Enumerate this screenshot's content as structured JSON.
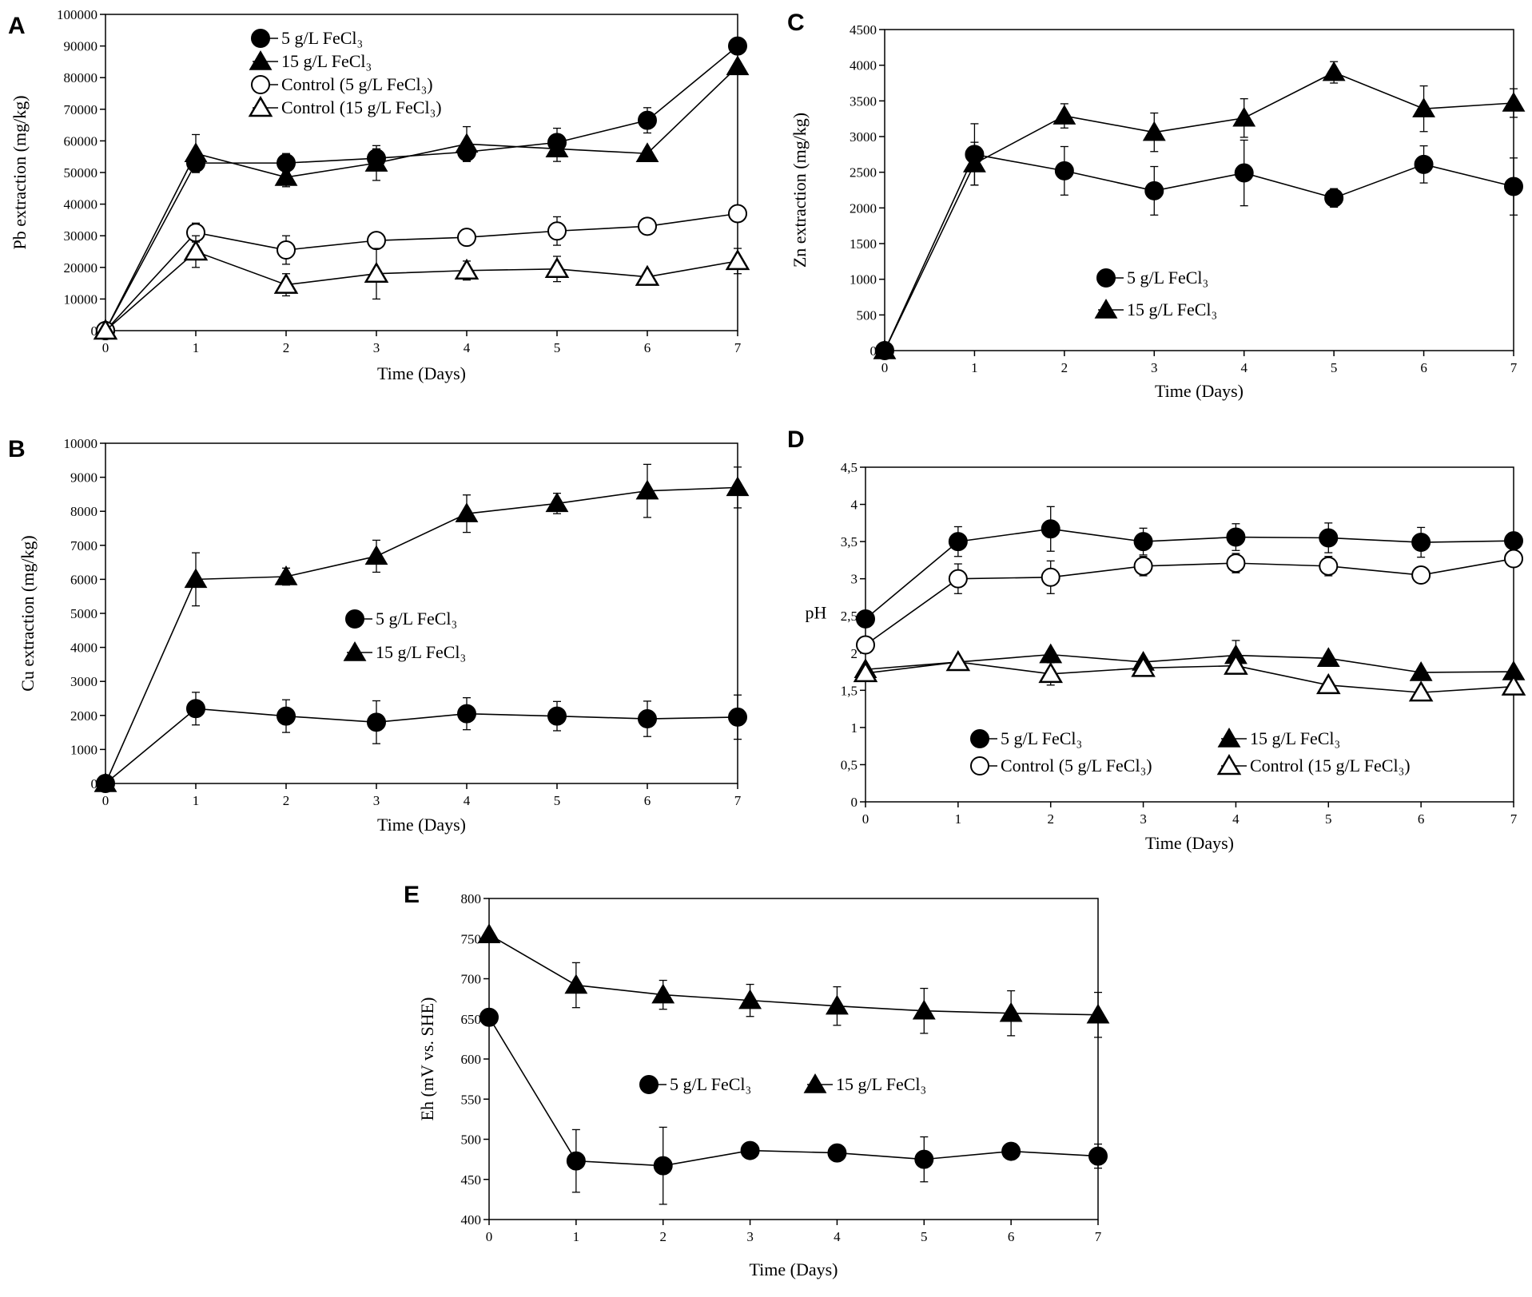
{
  "figure": {
    "subscript_note": "FeCl₃ shown as in original"
  },
  "chart_data": [
    {
      "panel": "A",
      "type": "line",
      "xlabel": "Time (Days)",
      "ylabel": "Pb extraction (mg/kg)",
      "xlim": [
        0,
        7
      ],
      "ylim": [
        0,
        100000
      ],
      "yticks": [
        0,
        10000,
        20000,
        30000,
        40000,
        50000,
        60000,
        70000,
        80000,
        90000,
        100000
      ],
      "ytick_labels": [
        "0",
        "10000",
        "20000",
        "30000",
        "40000",
        "50000",
        "60000",
        "70000",
        "80000",
        "90000",
        "100000"
      ],
      "xticks": [
        0,
        1,
        2,
        3,
        4,
        5,
        6,
        7
      ],
      "xtick_labels": [
        "0",
        "1",
        "2",
        "3",
        "4",
        "5",
        "6",
        "7"
      ],
      "legend": "top-left, stacked",
      "series": [
        {
          "name": "5 g/L FeCl₃",
          "marker": "circle-filled",
          "x": [
            0,
            1,
            2,
            3,
            4,
            5,
            6,
            7
          ],
          "values": [
            0,
            53000,
            53000,
            54500,
            56500,
            59500,
            66500,
            90000
          ],
          "errors": [
            0,
            3000,
            3000,
            3000,
            3000,
            4500,
            4000,
            0
          ]
        },
        {
          "name": "15 g/L FeCl₃",
          "marker": "triangle-filled",
          "x": [
            0,
            1,
            2,
            3,
            4,
            5,
            6,
            7
          ],
          "values": [
            0,
            56000,
            48500,
            53000,
            59000,
            57500,
            56000,
            83500
          ],
          "errors": [
            0,
            6000,
            3000,
            5500,
            5500,
            4000,
            0,
            0
          ]
        },
        {
          "name": "Control (5 g/L FeCl₃)",
          "marker": "circle-open",
          "x": [
            0,
            1,
            2,
            3,
            4,
            5,
            6,
            7
          ],
          "values": [
            0,
            31000,
            25500,
            28500,
            29500,
            31500,
            33000,
            37000
          ],
          "errors": [
            0,
            3000,
            4500,
            0,
            0,
            4500,
            0,
            0
          ]
        },
        {
          "name": "Control (15 g/L FeCl₃)",
          "marker": "triangle-open",
          "x": [
            0,
            1,
            2,
            3,
            4,
            5,
            6,
            7
          ],
          "values": [
            0,
            25000,
            14500,
            18000,
            19000,
            19500,
            17000,
            22000
          ],
          "errors": [
            0,
            5000,
            3500,
            8000,
            3000,
            4000,
            0,
            4000
          ]
        }
      ]
    },
    {
      "panel": "B",
      "type": "line",
      "xlabel": "Time (Days)",
      "ylabel": "Cu extraction (mg/kg)",
      "xlim": [
        0,
        7
      ],
      "ylim": [
        0,
        10000
      ],
      "yticks": [
        0,
        1000,
        2000,
        3000,
        4000,
        5000,
        6000,
        7000,
        8000,
        9000,
        10000
      ],
      "ytick_labels": [
        "0",
        "1000",
        "2000",
        "3000",
        "4000",
        "5000",
        "6000",
        "7000",
        "8000",
        "9000",
        "10000"
      ],
      "xticks": [
        0,
        1,
        2,
        3,
        4,
        5,
        6,
        7
      ],
      "xtick_labels": [
        "0",
        "1",
        "2",
        "3",
        "4",
        "5",
        "6",
        "7"
      ],
      "legend": "center, stacked",
      "series": [
        {
          "name": "5 g/L FeCl₃",
          "marker": "circle-filled",
          "x": [
            0,
            1,
            2,
            3,
            4,
            5,
            6,
            7
          ],
          "values": [
            0,
            2200,
            1980,
            1800,
            2050,
            1980,
            1900,
            1950
          ],
          "errors": [
            0,
            480,
            480,
            630,
            470,
            430,
            520,
            650
          ]
        },
        {
          "name": "15 g/L FeCl₃",
          "marker": "triangle-filled",
          "x": [
            0,
            1,
            2,
            3,
            4,
            5,
            6,
            7
          ],
          "values": [
            0,
            6000,
            6080,
            6680,
            7930,
            8230,
            8600,
            8700
          ],
          "errors": [
            0,
            780,
            250,
            470,
            550,
            300,
            780,
            600
          ]
        }
      ]
    },
    {
      "panel": "C",
      "type": "line",
      "xlabel": "Time (Days)",
      "ylabel": "Zn extraction (mg/kg)",
      "xlim": [
        0,
        7
      ],
      "ylim": [
        0,
        4500
      ],
      "yticks": [
        0,
        500,
        1000,
        1500,
        2000,
        2500,
        3000,
        3500,
        4000,
        4500
      ],
      "ytick_labels": [
        "0",
        "500",
        "1000",
        "1500",
        "2000",
        "2500",
        "3000",
        "3500",
        "4000",
        "4500"
      ],
      "xticks": [
        0,
        1,
        2,
        3,
        4,
        5,
        6,
        7
      ],
      "xtick_labels": [
        "0",
        "1",
        "2",
        "3",
        "4",
        "5",
        "6",
        "7"
      ],
      "legend": "center-left, stacked",
      "series": [
        {
          "name": "5 g/L FeCl₃",
          "marker": "circle-filled",
          "x": [
            0,
            1,
            2,
            3,
            4,
            5,
            6,
            7
          ],
          "values": [
            0,
            2750,
            2520,
            2240,
            2490,
            2140,
            2610,
            2300
          ],
          "errors": [
            0,
            430,
            340,
            340,
            460,
            130,
            260,
            400
          ]
        },
        {
          "name": "15 g/L FeCl₃",
          "marker": "triangle-filled",
          "x": [
            0,
            1,
            2,
            3,
            4,
            5,
            6,
            7
          ],
          "values": [
            0,
            2620,
            3290,
            3060,
            3260,
            3900,
            3390,
            3470
          ],
          "errors": [
            0,
            300,
            170,
            270,
            270,
            150,
            320,
            200
          ]
        }
      ]
    },
    {
      "panel": "D",
      "type": "line",
      "xlabel": "Time (Days)",
      "ylabel": "pH",
      "xlim": [
        0,
        7
      ],
      "ylim": [
        0,
        4.5
      ],
      "yticks": [
        0,
        0.5,
        1,
        1.5,
        2,
        2.5,
        3,
        3.5,
        4,
        4.5
      ],
      "ytick_labels": [
        "0",
        "0,5",
        "1",
        "1,5",
        "2",
        "2,5",
        "3",
        "3,5",
        "4",
        "4,5"
      ],
      "xticks": [
        0,
        1,
        2,
        3,
        4,
        5,
        6,
        7
      ],
      "xtick_labels": [
        "0",
        "1",
        "2",
        "3",
        "4",
        "5",
        "6",
        "7"
      ],
      "legend": "bottom, two columns",
      "series": [
        {
          "name": "5 g/L FeCl₃",
          "marker": "circle-filled",
          "x": [
            0,
            1,
            2,
            3,
            4,
            5,
            6,
            7
          ],
          "values": [
            2.46,
            3.5,
            3.67,
            3.5,
            3.56,
            3.55,
            3.49,
            3.51
          ],
          "errors": [
            0,
            0.2,
            0.3,
            0.18,
            0.18,
            0.2,
            0.2,
            0.1
          ]
        },
        {
          "name": "15 g/L FeCl₃",
          "marker": "triangle-filled",
          "x": [
            0,
            1,
            2,
            3,
            4,
            5,
            6,
            7
          ],
          "values": [
            1.78,
            1.88,
            1.98,
            1.88,
            1.97,
            1.93,
            1.74,
            1.75
          ],
          "errors": [
            0,
            0.05,
            0.05,
            0.05,
            0.2,
            0.05,
            0.05,
            0.05
          ]
        },
        {
          "name": "Control (5 g/L FeCl₃)",
          "marker": "circle-open",
          "x": [
            0,
            1,
            2,
            3,
            4,
            5,
            6,
            7
          ],
          "values": [
            2.11,
            3.0,
            3.02,
            3.17,
            3.21,
            3.17,
            3.05,
            3.27
          ],
          "errors": [
            0,
            0.2,
            0.22,
            0.13,
            0.13,
            0.13,
            0.05,
            0.05
          ]
        },
        {
          "name": "Control (15 g/L FeCl₃)",
          "marker": "triangle-open",
          "x": [
            0,
            1,
            2,
            3,
            4,
            5,
            6,
            7
          ],
          "values": [
            1.73,
            1.88,
            1.72,
            1.8,
            1.83,
            1.57,
            1.47,
            1.55
          ],
          "errors": [
            0,
            0.05,
            0.15,
            0.1,
            0.1,
            0.05,
            0.05,
            0.05
          ]
        }
      ]
    },
    {
      "panel": "E",
      "type": "line",
      "xlabel": "Time (Days)",
      "ylabel": "Eh (mV vs. SHE)",
      "xlim": [
        0,
        7
      ],
      "ylim": [
        400,
        800
      ],
      "yticks": [
        400,
        450,
        500,
        550,
        600,
        650,
        700,
        750,
        800
      ],
      "ytick_labels": [
        "400",
        "450",
        "500",
        "550",
        "600",
        "650",
        "700",
        "750",
        "800"
      ],
      "xticks": [
        0,
        1,
        2,
        3,
        4,
        5,
        6,
        7
      ],
      "xtick_labels": [
        "0",
        "1",
        "2",
        "3",
        "4",
        "5",
        "6",
        "7"
      ],
      "legend": "center, single row",
      "series": [
        {
          "name": "5 g/L FeCl₃",
          "marker": "circle-filled",
          "x": [
            0,
            1,
            2,
            3,
            4,
            5,
            6,
            7
          ],
          "values": [
            652,
            473,
            467,
            486,
            483,
            475,
            485,
            479
          ],
          "errors": [
            0,
            39,
            48,
            0,
            0,
            28,
            0,
            15
          ]
        },
        {
          "name": "15 g/L FeCl₃",
          "marker": "triangle-filled",
          "x": [
            0,
            1,
            2,
            3,
            4,
            5,
            6,
            7
          ],
          "values": [
            755,
            692,
            680,
            673,
            666,
            660,
            657,
            655
          ],
          "errors": [
            0,
            28,
            18,
            20,
            24,
            28,
            28,
            28
          ]
        }
      ]
    }
  ]
}
